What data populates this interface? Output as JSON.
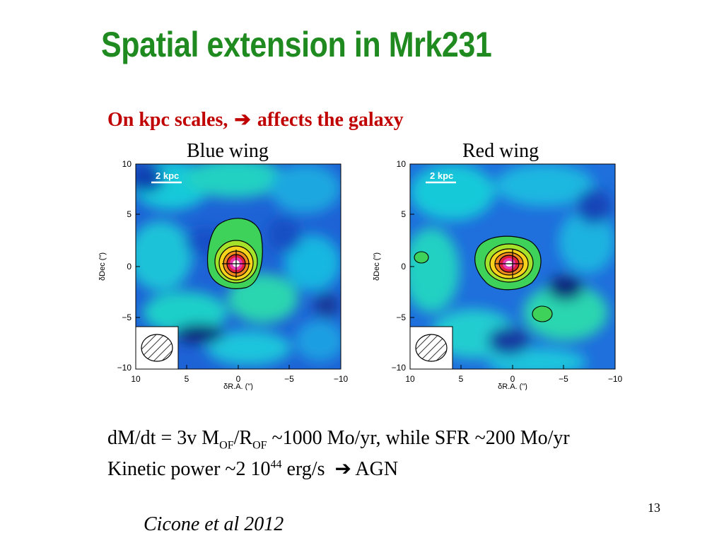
{
  "slide": {
    "title": "Spatial extension in Mrk231",
    "subtitle_left": "On kpc scales,",
    "subtitle_arrow": "➔",
    "subtitle_right": "affects the galaxy",
    "page_number": "13",
    "citation": "Cicone et al 2012"
  },
  "panels": [
    {
      "label": "Blue wing",
      "scale_bar": "2 kpc",
      "x_label": "δR.A. (\")",
      "y_label": "δDec (\")",
      "x_ticks": [
        "10",
        "5",
        "0",
        "−5",
        "−10"
      ],
      "y_ticks": [
        "10",
        "5",
        "0",
        "−5",
        "−10"
      ]
    },
    {
      "label": "Red wing",
      "scale_bar": "2 kpc",
      "x_label": "δR.A. (\")",
      "y_label": "δDec (\")",
      "x_ticks": [
        "10",
        "5",
        "0",
        "−5",
        "−10"
      ],
      "y_ticks": [
        "10",
        "5",
        "0",
        "−5",
        "−10"
      ]
    }
  ],
  "text": {
    "l1_a": "dM/dt = 3v M",
    "l1_sub1": "OF",
    "l1_b": "/R",
    "l1_sub2": "OF",
    "l1_c": " ~1000 Mo/yr, while SFR ~200 Mo/yr",
    "l2_a": "Kinetic power ~2 10",
    "l2_sup": "44",
    "l2_b": " erg/s",
    "l2_arrow": "➔",
    "l2_c": "AGN"
  },
  "colors": {
    "title": "#1f8a1f",
    "subtitle": "#c00000"
  }
}
